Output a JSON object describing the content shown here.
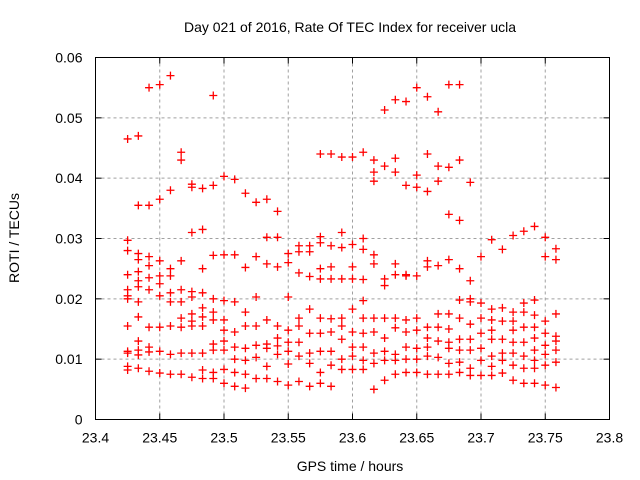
{
  "chart_data": {
    "type": "scatter",
    "title": "Day 021 of 2016, Rate Of TEC Index for receiver ucla",
    "xlabel": "GPS time / hours",
    "ylabel": "ROTI / TECUs",
    "xlim": [
      23.4,
      23.8
    ],
    "ylim": [
      0,
      0.06
    ],
    "xticks": [
      "23.4",
      "23.45",
      "23.5",
      "23.55",
      "23.6",
      "23.65",
      "23.7",
      "23.75",
      "23.8"
    ],
    "yticks": [
      "0",
      "0.01",
      "0.02",
      "0.03",
      "0.04",
      "0.05",
      "0.06"
    ],
    "grid": true,
    "marker": "plus",
    "color": "#ff0000",
    "x_start": 23.425,
    "x_step": 0.008333,
    "columns": [
      [
        0.0465,
        0.0297,
        0.028,
        0.024,
        0.0215,
        0.0205,
        0.02,
        0.0155,
        0.0113,
        0.011,
        0.0088,
        0.0082
      ],
      [
        0.047,
        0.0355,
        0.0275,
        0.0265,
        0.0245,
        0.023,
        0.022,
        0.0195,
        0.017,
        0.013,
        0.0115,
        0.0107,
        0.0085
      ],
      [
        0.055,
        0.0355,
        0.027,
        0.0255,
        0.0235,
        0.0215,
        0.0153,
        0.012,
        0.0112,
        0.008
      ],
      [
        0.0555,
        0.0365,
        0.0263,
        0.0238,
        0.0225,
        0.0205,
        0.0153,
        0.0113,
        0.0077
      ],
      [
        0.057,
        0.038,
        0.025,
        0.0238,
        0.021,
        0.0195,
        0.0155,
        0.0108,
        0.0075
      ],
      [
        0.0443,
        0.043,
        0.0263,
        0.0215,
        0.0195,
        0.0168,
        0.0153,
        0.011,
        0.0075
      ],
      [
        0.039,
        0.0385,
        0.031,
        0.0212,
        0.0203,
        0.0175,
        0.0163,
        0.0155,
        0.011,
        0.007
      ],
      [
        0.0383,
        0.0315,
        0.025,
        0.021,
        0.0185,
        0.017,
        0.0155,
        0.011,
        0.0082,
        0.0068
      ],
      [
        0.0537,
        0.0388,
        0.0272,
        0.02,
        0.0178,
        0.0165,
        0.0125,
        0.0115,
        0.0078,
        0.0068
      ],
      [
        0.0403,
        0.0273,
        0.0197,
        0.0165,
        0.0148,
        0.013,
        0.0115,
        0.0083,
        0.006
      ],
      [
        0.0398,
        0.0273,
        0.0195,
        0.0145,
        0.012,
        0.01,
        0.0078,
        0.0055
      ],
      [
        0.0375,
        0.0252,
        0.0178,
        0.0155,
        0.0118,
        0.0098,
        0.0075,
        0.0052
      ],
      [
        0.036,
        0.027,
        0.0203,
        0.0155,
        0.0123,
        0.0103,
        0.0068
      ],
      [
        0.0365,
        0.0302,
        0.0258,
        0.0165,
        0.0125,
        0.0118,
        0.0088,
        0.0068
      ],
      [
        0.0345,
        0.0302,
        0.0253,
        0.0155,
        0.0135,
        0.0122,
        0.0108,
        0.0063
      ],
      [
        0.0275,
        0.026,
        0.0203,
        0.0148,
        0.0128,
        0.0113,
        0.0092,
        0.0057
      ],
      [
        0.0288,
        0.0278,
        0.0243,
        0.0168,
        0.0155,
        0.0128,
        0.0105,
        0.0063
      ],
      [
        0.0288,
        0.0278,
        0.0237,
        0.0183,
        0.0143,
        0.011,
        0.0093,
        0.0055
      ],
      [
        0.044,
        0.0303,
        0.0293,
        0.025,
        0.0233,
        0.0168,
        0.0143,
        0.0113,
        0.0078,
        0.006
      ],
      [
        0.044,
        0.0288,
        0.0253,
        0.0233,
        0.0167,
        0.0145,
        0.0113,
        0.009,
        0.0055
      ],
      [
        0.0435,
        0.031,
        0.0285,
        0.0233,
        0.0168,
        0.0155,
        0.0133,
        0.01,
        0.0083
      ],
      [
        0.0435,
        0.029,
        0.0253,
        0.0233,
        0.0183,
        0.0145,
        0.012,
        0.0105,
        0.0083
      ],
      [
        0.0443,
        0.03,
        0.0282,
        0.0232,
        0.0197,
        0.0168,
        0.0143,
        0.012,
        0.0098,
        0.0083
      ],
      [
        0.043,
        0.041,
        0.0395,
        0.0273,
        0.0258,
        0.0168,
        0.0145,
        0.011,
        0.0093,
        0.005
      ],
      [
        0.0513,
        0.042,
        0.0222,
        0.0233,
        0.0168,
        0.0135,
        0.0113,
        0.0098,
        0.0065
      ],
      [
        0.053,
        0.0433,
        0.041,
        0.0258,
        0.024,
        0.0168,
        0.0152,
        0.0108,
        0.0098,
        0.0075
      ],
      [
        0.0527,
        0.0388,
        0.024,
        0.0238,
        0.0165,
        0.0145,
        0.012,
        0.01,
        0.0078
      ],
      [
        0.055,
        0.0405,
        0.0385,
        0.0238,
        0.0168,
        0.0148,
        0.0118,
        0.01,
        0.0078
      ],
      [
        0.0535,
        0.044,
        0.0378,
        0.0263,
        0.0253,
        0.0153,
        0.0135,
        0.012,
        0.0105,
        0.0075
      ],
      [
        0.051,
        0.042,
        0.0395,
        0.0255,
        0.0175,
        0.0153,
        0.013,
        0.0103,
        0.0075
      ],
      [
        0.0555,
        0.0418,
        0.034,
        0.0265,
        0.0175,
        0.015,
        0.0128,
        0.0118,
        0.0093,
        0.0075
      ],
      [
        0.0555,
        0.043,
        0.033,
        0.025,
        0.0198,
        0.0168,
        0.0133,
        0.0115,
        0.0095,
        0.0078
      ],
      [
        0.0393,
        0.023,
        0.02,
        0.0195,
        0.0158,
        0.0133,
        0.0115,
        0.0085,
        0.0073
      ],
      [
        0.027,
        0.0193,
        0.0168,
        0.0143,
        0.0118,
        0.0098,
        0.0073
      ],
      [
        0.0298,
        0.0183,
        0.0165,
        0.0148,
        0.0133,
        0.0105,
        0.0088,
        0.0073
      ],
      [
        0.0282,
        0.0185,
        0.0163,
        0.0133,
        0.011,
        0.0098,
        0.0077
      ],
      [
        0.0305,
        0.0178,
        0.0163,
        0.0148,
        0.0128,
        0.011,
        0.009,
        0.0065
      ],
      [
        0.0312,
        0.0193,
        0.0178,
        0.0153,
        0.0128,
        0.0105,
        0.0085,
        0.006
      ],
      [
        0.032,
        0.0198,
        0.0173,
        0.0153,
        0.0135,
        0.0115,
        0.0098,
        0.0085,
        0.006
      ],
      [
        0.0302,
        0.027,
        0.0163,
        0.0143,
        0.0123,
        0.0108,
        0.009,
        0.0057
      ],
      [
        0.0283,
        0.0265,
        0.0175,
        0.0138,
        0.013,
        0.0115,
        0.0095,
        0.0053
      ]
    ]
  }
}
